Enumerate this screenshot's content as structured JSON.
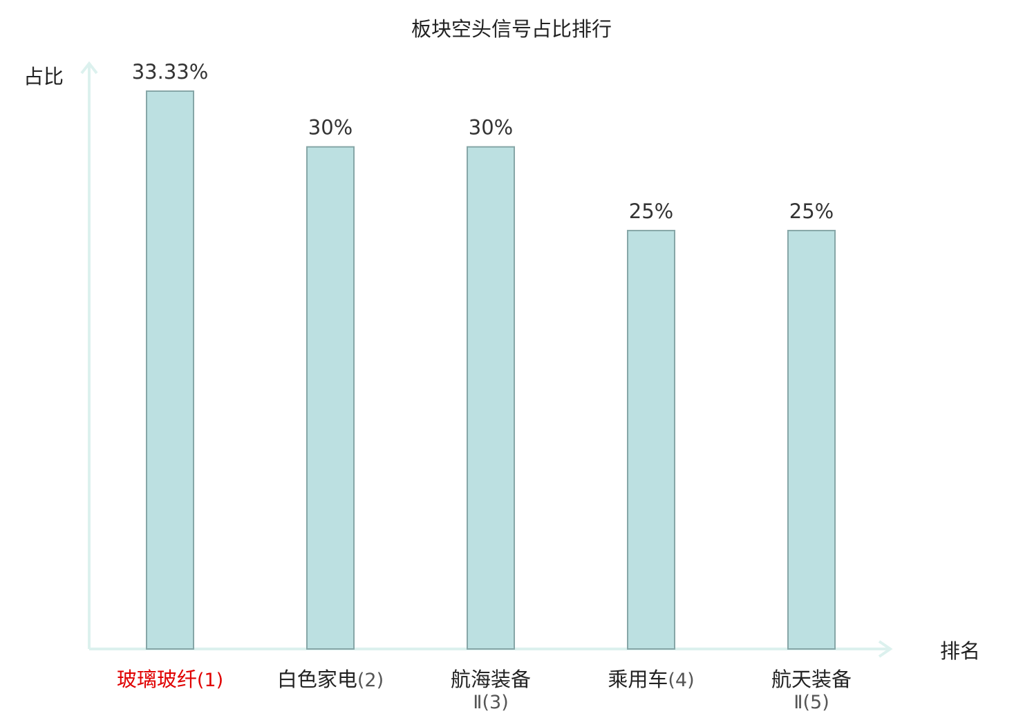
{
  "chart_data": {
    "type": "bar",
    "title": "板块空头信号占比排行",
    "ylabel": "占比",
    "xlabel": "排名",
    "categories": [
      {
        "name": "玻璃玻纤",
        "rank": "(1)",
        "highlight": true
      },
      {
        "name": "白色家电",
        "rank": "(2)",
        "highlight": false
      },
      {
        "name": "航海装备",
        "rank": "Ⅱ(3)",
        "highlight": false
      },
      {
        "name": "乘用车",
        "rank": "(4)",
        "highlight": false
      },
      {
        "name": "航天装备",
        "rank": "Ⅱ(5)",
        "highlight": false
      }
    ],
    "values": [
      33.33,
      30,
      30,
      25,
      25
    ],
    "value_labels": [
      "33.33%",
      "30%",
      "30%",
      "25%",
      "25%"
    ],
    "ylim": [
      0,
      33.33
    ],
    "grid": false,
    "legend": "none",
    "colors": {
      "bar_fill": "#bce0e1",
      "bar_stroke": "#86a6a7",
      "axis": "#dcf1ee",
      "highlight_label": "#e00000",
      "text": "#222222",
      "value_text": "#333333"
    }
  }
}
